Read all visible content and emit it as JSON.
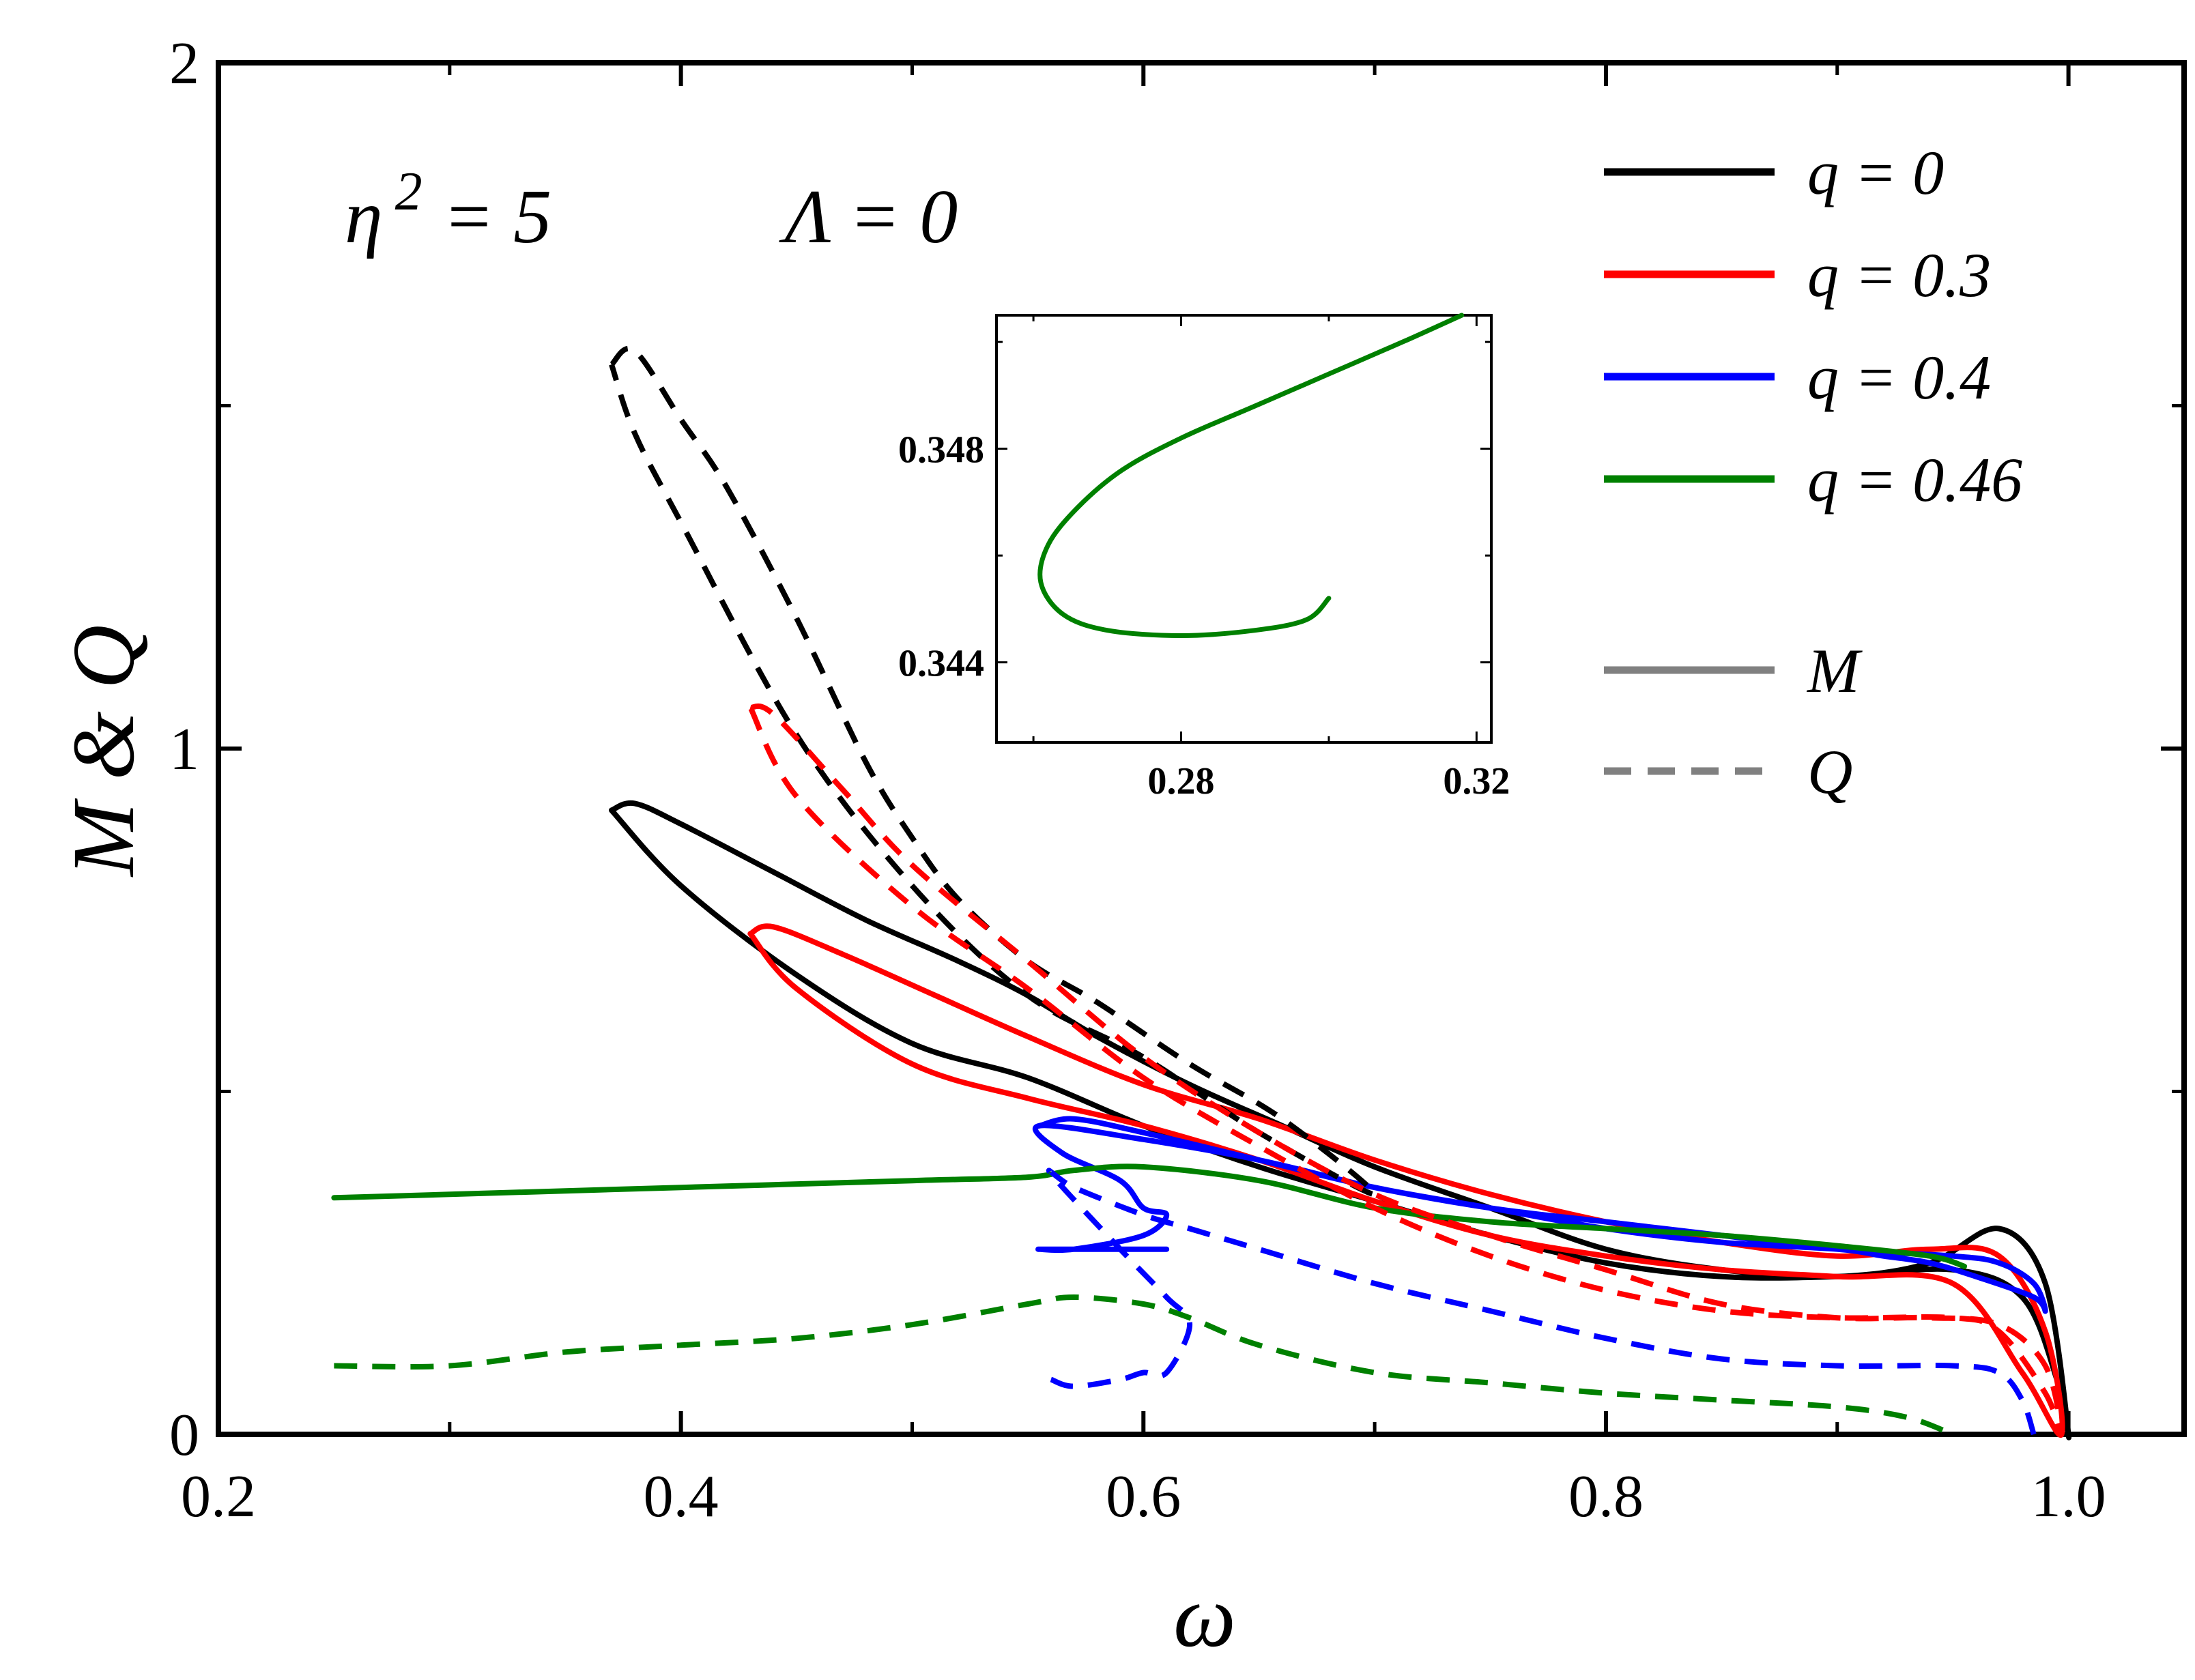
{
  "chart_data": {
    "type": "line",
    "xlabel": "ω",
    "ylabel": "M & Q",
    "xlim": [
      0.2,
      1.05
    ],
    "ylim": [
      0,
      2
    ],
    "xticks": [
      0.2,
      0.4,
      0.6,
      0.8,
      1.0
    ],
    "xtick_labels": [
      "0.2",
      "0.4",
      "0.6",
      "0.8",
      "1.0"
    ],
    "yticks": [
      0,
      1,
      2
    ],
    "ytick_labels": [
      "0",
      "1",
      "2"
    ],
    "annotations": {
      "eta": "η",
      "eta_sup": "2",
      "eta_rest": "= 5",
      "lambda": "Λ = 0"
    },
    "legend": {
      "position": "top-right",
      "entries": [
        {
          "label": "q = 0",
          "color": "#000000",
          "style": "solid"
        },
        {
          "label": "q = 0.3",
          "color": "#ff0000",
          "style": "solid"
        },
        {
          "label": "q = 0.4",
          "color": "#0000ff",
          "style": "solid"
        },
        {
          "label": "q = 0.46",
          "color": "#008000",
          "style": "solid"
        },
        {
          "label": "M",
          "color": "#808080",
          "style": "solid"
        },
        {
          "label": "Q",
          "color": "#808080",
          "style": "dashed"
        }
      ]
    },
    "series": [
      {
        "name": "M, q = 0",
        "color": "#000000",
        "dash": false,
        "x": [
          0.37,
          0.38,
          0.4,
          0.44,
          0.48,
          0.52,
          0.55,
          0.58,
          0.62,
          0.66,
          0.7,
          0.75,
          0.8,
          0.85,
          0.9,
          0.94,
          0.97,
          0.99,
          1.0,
          0.995,
          0.98,
          0.95,
          0.9,
          0.85,
          0.8,
          0.75,
          0.7,
          0.65,
          0.6,
          0.55,
          0.5,
          0.45,
          0.4,
          0.37
        ],
        "y": [
          0.91,
          0.92,
          0.89,
          0.82,
          0.75,
          0.69,
          0.64,
          0.58,
          0.51,
          0.45,
          0.39,
          0.33,
          0.27,
          0.24,
          0.23,
          0.25,
          0.3,
          0.22,
          0.0,
          0.08,
          0.2,
          0.24,
          0.23,
          0.23,
          0.25,
          0.29,
          0.34,
          0.39,
          0.45,
          0.52,
          0.57,
          0.67,
          0.8,
          0.91
        ]
      },
      {
        "name": "M, q = 0.3",
        "color": "#ff0000",
        "dash": false,
        "x": [
          0.43,
          0.44,
          0.47,
          0.51,
          0.55,
          0.6,
          0.65,
          0.7,
          0.75,
          0.8,
          0.85,
          0.9,
          0.94,
          0.97,
          0.99,
          0.997,
          0.98,
          0.95,
          0.9,
          0.85,
          0.8,
          0.75,
          0.7,
          0.65,
          0.6,
          0.55,
          0.5,
          0.45,
          0.43
        ],
        "y": [
          0.73,
          0.74,
          0.7,
          0.64,
          0.58,
          0.51,
          0.46,
          0.4,
          0.35,
          0.31,
          0.28,
          0.26,
          0.27,
          0.26,
          0.15,
          0.0,
          0.09,
          0.22,
          0.23,
          0.24,
          0.26,
          0.29,
          0.34,
          0.4,
          0.45,
          0.49,
          0.54,
          0.65,
          0.73
        ]
      },
      {
        "name": "M, q = 0.4",
        "color": "#0000ff",
        "dash": false,
        "x": [
          0.61,
          0.58,
          0.56,
          0.555,
          0.57,
          0.6,
          0.61,
          0.6,
          0.59,
          0.565,
          0.555,
          0.6,
          0.65,
          0.7,
          0.75,
          0.8,
          0.85,
          0.9,
          0.95,
          0.97,
          0.985,
          0.99,
          0.985,
          0.96,
          0.94,
          0.92,
          0.9,
          0.85,
          0.8,
          0.75,
          0.7,
          0.65,
          0.6,
          0.57,
          0.555
        ],
        "y": [
          0.27,
          0.27,
          0.27,
          0.27,
          0.27,
          0.29,
          0.32,
          0.33,
          0.37,
          0.41,
          0.45,
          0.43,
          0.4,
          0.36,
          0.33,
          0.31,
          0.29,
          0.27,
          0.26,
          0.25,
          0.22,
          0.18,
          0.2,
          0.23,
          0.25,
          0.26,
          0.27,
          0.28,
          0.3,
          0.33,
          0.36,
          0.4,
          0.44,
          0.46,
          0.45
        ]
      },
      {
        "name": "M, q = 0.46",
        "color": "#008000",
        "dash": false,
        "x": [
          0.25,
          0.3,
          0.4,
          0.5,
          0.55,
          0.57,
          0.6,
          0.65,
          0.7,
          0.75,
          0.8,
          0.85,
          0.9,
          0.94,
          0.955
        ],
        "y": [
          0.345,
          0.35,
          0.36,
          0.37,
          0.375,
          0.385,
          0.39,
          0.37,
          0.33,
          0.31,
          0.3,
          0.29,
          0.275,
          0.26,
          0.245
        ]
      },
      {
        "name": "Q, q = 0",
        "color": "#000000",
        "dash": true,
        "x": [
          0.37,
          0.38,
          0.4,
          0.42,
          0.45,
          0.48,
          0.5,
          0.52,
          0.55,
          0.58,
          0.62,
          0.66,
          0.7,
          0.65,
          0.6,
          0.55,
          0.5,
          0.45,
          0.4,
          0.38,
          0.37
        ],
        "y": [
          1.56,
          1.58,
          1.48,
          1.38,
          1.19,
          0.98,
          0.87,
          0.78,
          0.69,
          0.63,
          0.54,
          0.46,
          0.35,
          0.44,
          0.55,
          0.64,
          0.8,
          1.02,
          1.33,
          1.46,
          1.56
        ]
      },
      {
        "name": "Q, q = 0.3",
        "color": "#ff0000",
        "dash": true,
        "x": [
          0.43,
          0.44,
          0.47,
          0.5,
          0.55,
          0.6,
          0.65,
          0.7,
          0.75,
          0.8,
          0.85,
          0.9,
          0.94,
          0.97,
          0.99,
          0.997,
          0.99,
          0.97,
          0.95,
          0.9,
          0.85,
          0.8,
          0.75,
          0.7,
          0.65,
          0.6,
          0.55,
          0.5,
          0.45,
          0.43
        ],
        "y": [
          1.06,
          1.05,
          0.94,
          0.83,
          0.69,
          0.55,
          0.44,
          0.35,
          0.29,
          0.24,
          0.19,
          0.17,
          0.17,
          0.16,
          0.1,
          0.0,
          0.06,
          0.15,
          0.17,
          0.17,
          0.18,
          0.21,
          0.26,
          0.33,
          0.42,
          0.52,
          0.65,
          0.77,
          0.93,
          1.06
        ]
      },
      {
        "name": "Q, q = 0.4",
        "color": "#0000ff",
        "dash": true,
        "x": [
          0.56,
          0.57,
          0.59,
          0.6,
          0.61,
          0.62,
          0.61,
          0.59,
          0.56,
          0.57,
          0.6,
          0.62,
          0.65,
          0.7,
          0.75,
          0.8,
          0.85,
          0.9,
          0.95,
          0.97,
          0.98,
          0.985
        ],
        "y": [
          0.08,
          0.07,
          0.08,
          0.09,
          0.09,
          0.16,
          0.2,
          0.27,
          0.38,
          0.36,
          0.32,
          0.3,
          0.27,
          0.22,
          0.18,
          0.14,
          0.11,
          0.1,
          0.1,
          0.09,
          0.05,
          0.0
        ]
      },
      {
        "name": "Q, q = 0.46",
        "color": "#008000",
        "dash": true,
        "x": [
          0.25,
          0.3,
          0.35,
          0.4,
          0.45,
          0.5,
          0.55,
          0.57,
          0.6,
          0.62,
          0.65,
          0.7,
          0.75,
          0.8,
          0.85,
          0.9,
          0.93,
          0.95
        ],
        "y": [
          0.1,
          0.1,
          0.12,
          0.13,
          0.14,
          0.16,
          0.19,
          0.2,
          0.19,
          0.17,
          0.13,
          0.09,
          0.075,
          0.06,
          0.05,
          0.04,
          0.025,
          0.0
        ]
      }
    ],
    "inset": {
      "xlim": [
        0.255,
        0.322
      ],
      "ylim": [
        0.3425,
        0.3505
      ],
      "xticks": [
        0.28,
        0.32
      ],
      "xtick_labels": [
        "0.28",
        "0.32"
      ],
      "yticks": [
        0.344,
        0.348
      ],
      "ytick_labels": [
        "0.344",
        "0.348"
      ],
      "series": [
        {
          "name": "M, q = 0.46 (zoom)",
          "color": "#008000",
          "x": [
            0.3,
            0.297,
            0.29,
            0.28,
            0.27,
            0.264,
            0.261,
            0.262,
            0.266,
            0.272,
            0.28,
            0.29,
            0.3,
            0.31,
            0.318
          ],
          "y": [
            0.3452,
            0.3448,
            0.3446,
            0.3445,
            0.3446,
            0.3449,
            0.3455,
            0.3462,
            0.3469,
            0.3476,
            0.3482,
            0.3488,
            0.3494,
            0.35,
            0.3505
          ]
        }
      ]
    }
  }
}
